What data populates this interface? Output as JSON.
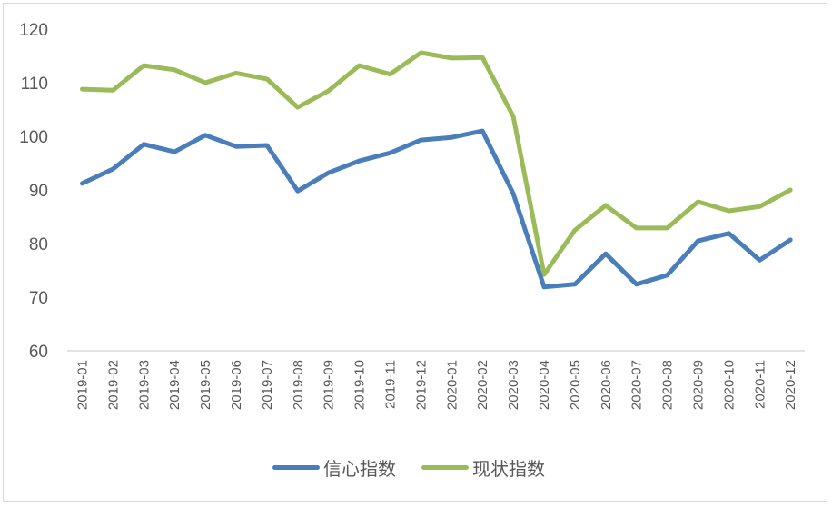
{
  "chart_data": {
    "type": "line",
    "title": "",
    "xlabel": "",
    "ylabel": "",
    "ylim": [
      60,
      120
    ],
    "yticks": [
      60,
      70,
      80,
      90,
      100,
      110,
      120
    ],
    "grid": false,
    "legend_position": "bottom",
    "categories": [
      "2019-01",
      "2019-02",
      "2019-03",
      "2019-04",
      "2019-05",
      "2019-06",
      "2019-07",
      "2019-08",
      "2019-09",
      "2019-10",
      "2019-11",
      "2019-12",
      "2020-01",
      "2020-02",
      "2020-03",
      "2020-04",
      "2020-05",
      "2020-06",
      "2020-07",
      "2020-08",
      "2020-09",
      "2020-10",
      "2020-11",
      "2020-12"
    ],
    "series": [
      {
        "name": "信心指数",
        "color": "#4a7ebb",
        "values": [
          91.2,
          93.9,
          98.5,
          97.1,
          100.2,
          98.1,
          98.3,
          89.8,
          93.2,
          95.4,
          96.9,
          99.3,
          99.8,
          101.0,
          89.3,
          71.9,
          72.4,
          78.1,
          72.4,
          74.1,
          80.5,
          81.9,
          76.9,
          80.7
        ]
      },
      {
        "name": "现状指数",
        "color": "#9bbb59",
        "values": [
          108.8,
          108.6,
          113.2,
          112.4,
          110.0,
          111.8,
          110.7,
          105.4,
          108.5,
          113.2,
          111.6,
          115.6,
          114.6,
          114.7,
          103.7,
          74.2,
          82.5,
          87.1,
          82.9,
          82.9,
          87.8,
          86.1,
          86.9,
          90.0
        ]
      }
    ]
  },
  "legend": {
    "items": [
      {
        "label": "信心指数",
        "color": "#4a7ebb"
      },
      {
        "label": "现状指数",
        "color": "#9bbb59"
      }
    ]
  }
}
